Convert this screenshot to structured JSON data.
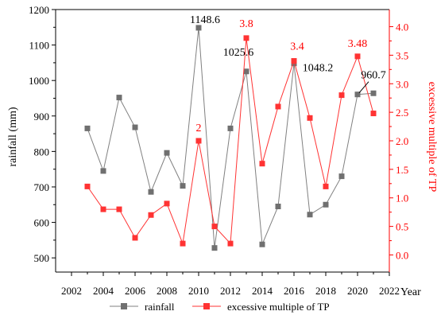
{
  "chart_data": {
    "type": "line",
    "x": [
      2003,
      2004,
      2005,
      2006,
      2007,
      2008,
      2009,
      2010,
      2011,
      2012,
      2013,
      2014,
      2015,
      2016,
      2017,
      2018,
      2019,
      2020,
      2021
    ],
    "xlabel": "Year",
    "xlim": [
      2001,
      2022
    ],
    "xticks": [
      "2002",
      "2004",
      "2006",
      "2008",
      "2010",
      "2012",
      "2014",
      "2016",
      "2018",
      "2020",
      "2022"
    ],
    "y_left": {
      "label": "rainfall (mm)",
      "lim": [
        460,
        1200
      ],
      "ticks": [
        "500",
        "600",
        "700",
        "800",
        "900",
        "1000",
        "1100",
        "1200"
      ],
      "color": "#000000"
    },
    "y_right": {
      "label": "excessive multiple of TP",
      "lim": [
        -0.3,
        4.3
      ],
      "ticks": [
        "0.0",
        "0.5",
        "1.0",
        "1.5",
        "2.0",
        "2.5",
        "3.0",
        "3.5",
        "4.0"
      ],
      "color": "#ff0000"
    },
    "series": [
      {
        "name": "rainfall",
        "axis": "left",
        "color": "#808080",
        "values": [
          865,
          745,
          952,
          868,
          686,
          796,
          703,
          1148.6,
          528,
          865,
          1025.6,
          538,
          645,
          1048.2,
          622,
          650,
          730,
          960.7,
          964
        ]
      },
      {
        "name": "excessive multiple of TP",
        "axis": "right",
        "color": "#ff3333",
        "values": [
          1.2,
          0.8,
          0.8,
          0.3,
          0.7,
          0.9,
          0.2,
          2,
          0.5,
          0.2,
          3.8,
          1.6,
          2.6,
          3.4,
          2.4,
          1.2,
          2.8,
          3.48,
          2.48
        ]
      }
    ],
    "annotations": [
      {
        "text": "1148.6",
        "series": 0,
        "index": 7,
        "color": "#000000"
      },
      {
        "text": "1025.6",
        "series": 0,
        "index": 10,
        "color": "#000000"
      },
      {
        "text": "1048.2",
        "series": 0,
        "index": 13,
        "color": "#000000"
      },
      {
        "text": "960.7",
        "series": 0,
        "index": 17,
        "color": "#000000"
      },
      {
        "text": "2",
        "series": 1,
        "index": 7,
        "color": "#ff0000"
      },
      {
        "text": "3.8",
        "series": 1,
        "index": 10,
        "color": "#ff0000"
      },
      {
        "text": "3.4",
        "series": 1,
        "index": 13,
        "color": "#ff0000"
      },
      {
        "text": "3.48",
        "series": 1,
        "index": 17,
        "color": "#ff0000"
      }
    ],
    "legend": "bottom"
  }
}
